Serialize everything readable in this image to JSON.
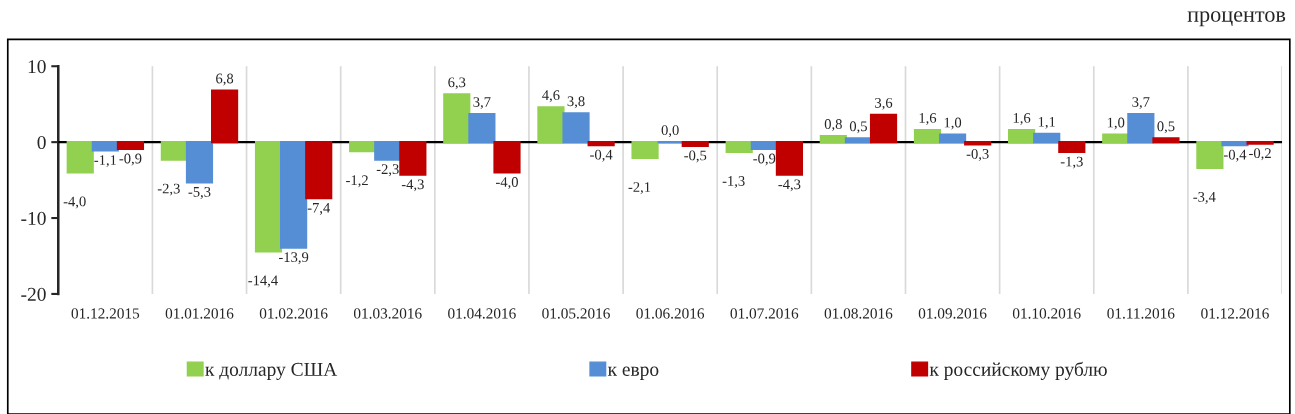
{
  "chart_data": {
    "type": "bar",
    "annotations": [
      "процентов"
    ],
    "categories": [
      "01.12.2015",
      "01.01.2016",
      "01.02.2016",
      "01.03.2016",
      "01.04.2016",
      "01.05.2016",
      "01.06.2016",
      "01.07.2016",
      "01.08.2016",
      "01.09.2016",
      "01.10.2016",
      "01.11.2016",
      "01.12.2016"
    ],
    "series": [
      {
        "name": "к доллару США",
        "color": "#92d050",
        "values": [
          -4.0,
          -2.3,
          -14.4,
          -1.2,
          6.3,
          4.6,
          -2.1,
          -1.3,
          0.8,
          1.6,
          1.6,
          1.0,
          -3.4
        ],
        "value_labels": [
          "-4,0",
          "-2,3",
          "-14,4",
          "-1,2",
          "6,3",
          "4,6",
          "-2,1",
          "-1,3",
          "0,8",
          "1,6",
          "1,6",
          "1,0",
          "-3,4"
        ]
      },
      {
        "name": "к евро",
        "color": "#558ed5",
        "values": [
          -1.1,
          -5.3,
          -13.9,
          -2.3,
          3.7,
          3.8,
          0.0,
          -0.9,
          0.5,
          1.0,
          1.1,
          3.7,
          -0.4
        ],
        "value_labels": [
          "-1,1",
          "-5,3",
          "-13,9",
          "-2,3",
          "3,7",
          "3,8",
          "0,0",
          "-0,9",
          "0,5",
          "1,0",
          "1,1",
          "3,7",
          "-0,4"
        ]
      },
      {
        "name": "к российскому рублю",
        "color": "#c00000",
        "values": [
          -0.9,
          6.8,
          -7.4,
          -4.3,
          -4.0,
          -0.4,
          -0.5,
          -4.3,
          3.6,
          -0.3,
          -1.3,
          0.5,
          -0.2
        ],
        "value_labels": [
          "-0,9",
          "6,8",
          "-7,4",
          "-4,3",
          "-4,0",
          "-0,4",
          "-0,5",
          "-4,3",
          "3,6",
          "-0,3",
          "-1,3",
          "0,5",
          "-0,2"
        ]
      }
    ],
    "ylim": [
      -20,
      10
    ],
    "yticks": [
      {
        "value": -20,
        "label": "-20"
      },
      {
        "value": -10,
        "label": "-10"
      },
      0,
      10
    ],
    "grid": "x",
    "legend": "bottom"
  }
}
